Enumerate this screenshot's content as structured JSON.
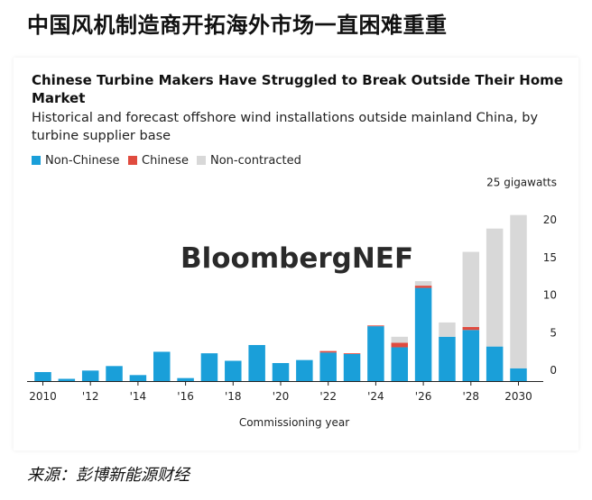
{
  "headline": "中国风机制造商开拓海外市场一直困难重重",
  "source": "来源：彭博新能源财经",
  "watermark": "BloombergNEF",
  "colors": {
    "non_chinese": "#1a9fd9",
    "chinese": "#e04b3f",
    "non_contracted": "#d8d8d8",
    "axis": "#222222"
  },
  "chart_data": {
    "type": "bar",
    "stacked": true,
    "title": "Chinese Turbine Makers Have Struggled to Break Outside Their Home Market",
    "subtitle": "Historical and forecast offshore wind installations outside mainland China, by turbine supplier base",
    "xlabel": "Commissioning year",
    "ylabel": "",
    "y_unit_label": "25 gigawatts",
    "ylim": [
      0,
      25
    ],
    "y_ticks": [
      0,
      5,
      10,
      15,
      20
    ],
    "legend_position": "top-left",
    "grid": false,
    "categories": [
      "2010",
      "2011",
      "2012",
      "2013",
      "2014",
      "2015",
      "2016",
      "2017",
      "2018",
      "2019",
      "2020",
      "2021",
      "2022",
      "2023",
      "2024",
      "2025",
      "2026",
      "2027",
      "2028",
      "2029",
      "2030"
    ],
    "x_tick_labels": [
      "2010",
      "'12",
      "'14",
      "'16",
      "'18",
      "'20",
      "'22",
      "'24",
      "'26",
      "'28",
      "2030"
    ],
    "x_tick_categories": [
      "2010",
      "2012",
      "2014",
      "2016",
      "2018",
      "2020",
      "2022",
      "2024",
      "2026",
      "2028",
      "2030"
    ],
    "series": [
      {
        "name": "Non-Chinese",
        "color_key": "non_chinese",
        "values": [
          1.2,
          0.3,
          1.4,
          2.0,
          0.8,
          3.9,
          0.4,
          3.7,
          2.7,
          4.8,
          2.4,
          2.8,
          3.8,
          3.6,
          7.3,
          4.5,
          12.4,
          5.9,
          6.8,
          4.6,
          1.7
        ]
      },
      {
        "name": "Chinese",
        "color_key": "chinese",
        "values": [
          0,
          0,
          0,
          0,
          0,
          0,
          0,
          0,
          0,
          0,
          0,
          0,
          0.2,
          0.1,
          0.1,
          0.6,
          0.3,
          0,
          0.4,
          0,
          0
        ]
      },
      {
        "name": "Non-contracted",
        "color_key": "non_contracted",
        "values": [
          0,
          0,
          0,
          0,
          0,
          0,
          0,
          0,
          0,
          0,
          0,
          0,
          0,
          0,
          0,
          0.8,
          0.6,
          1.9,
          10.0,
          15.7,
          20.4
        ]
      }
    ]
  }
}
